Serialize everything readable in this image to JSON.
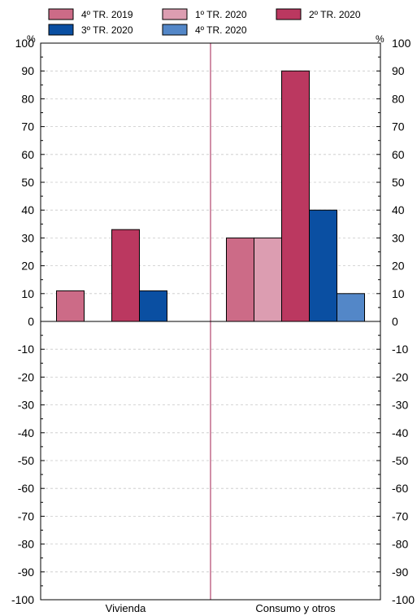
{
  "chart_data": {
    "type": "bar",
    "categories": [
      "Vivienda",
      "Consumo y otros"
    ],
    "series": [
      {
        "name": "4º TR. 2019",
        "color": "#cc6b87",
        "values": [
          11,
          30
        ]
      },
      {
        "name": "1º TR. 2020",
        "color": "#dc9db1",
        "values": [
          0,
          30
        ]
      },
      {
        "name": "2º TR. 2020",
        "color": "#bb3860",
        "values": [
          33,
          90
        ]
      },
      {
        "name": "3º TR. 2020",
        "color": "#0a4fa2",
        "values": [
          11,
          40
        ]
      },
      {
        "name": "4º TR. 2020",
        "color": "#5387c8",
        "values": [
          0,
          10
        ]
      }
    ],
    "ylim": [
      -100,
      100
    ],
    "yticks": [
      -100,
      -90,
      -80,
      -70,
      -60,
      -50,
      -40,
      -30,
      -20,
      -10,
      0,
      10,
      20,
      30,
      40,
      50,
      60,
      70,
      80,
      90,
      100
    ],
    "unit_left": "%",
    "unit_right": "%",
    "grid": true,
    "legend_position": "top",
    "divider_color": "#a31f4f"
  }
}
